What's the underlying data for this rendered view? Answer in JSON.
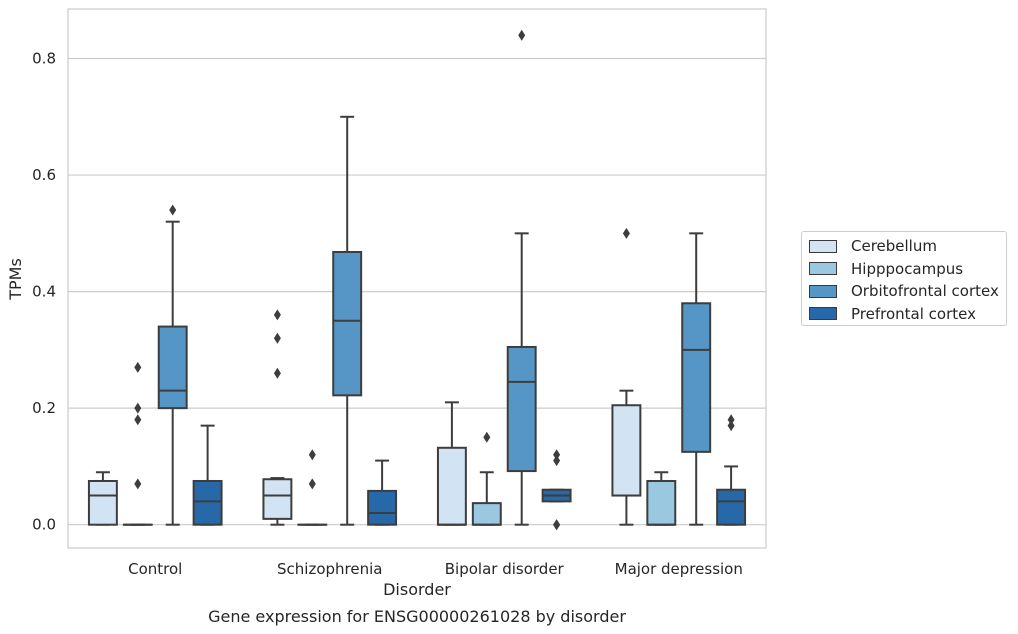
{
  "chart_data": {
    "type": "box",
    "caption": "Gene expression for ENSG00000261028 by disorder",
    "xlabel": "Disorder",
    "ylabel": "TPMs",
    "ylim": [
      -0.04,
      0.885
    ],
    "yticks": [
      "0.0",
      "0.2",
      "0.4",
      "0.6",
      "0.8"
    ],
    "grid": "horizontal",
    "legend_position": "right",
    "categories": [
      "Control",
      "Schizophrenia",
      "Bipolar disorder",
      "Major depression"
    ],
    "series": [
      {
        "name": "Cerebellum",
        "color": "#d2e3f3",
        "boxes": [
          {
            "whislo": 0.0,
            "q1": 0.0,
            "med": 0.05,
            "q3": 0.075,
            "whishi": 0.09,
            "fliers": []
          },
          {
            "whislo": 0.0,
            "q1": 0.01,
            "med": 0.05,
            "q3": 0.078,
            "whishi": 0.08,
            "fliers": [
              0.36,
              0.32,
              0.26
            ]
          },
          {
            "whislo": 0.0,
            "q1": 0.0,
            "med": 0.0,
            "q3": 0.132,
            "whishi": 0.21,
            "fliers": []
          },
          {
            "whislo": 0.0,
            "q1": 0.05,
            "med": 0.05,
            "q3": 0.205,
            "whishi": 0.23,
            "fliers": [
              0.5
            ]
          }
        ]
      },
      {
        "name": "Hipppocampus",
        "color": "#9ac8e0",
        "boxes": [
          {
            "whislo": 0.0,
            "q1": 0.0,
            "med": 0.0,
            "q3": 0.0,
            "whishi": 0.0,
            "fliers": [
              0.27,
              0.2,
              0.18,
              0.07
            ]
          },
          {
            "whislo": 0.0,
            "q1": 0.0,
            "med": 0.0,
            "q3": 0.0,
            "whishi": 0.0,
            "fliers": [
              0.12,
              0.07
            ]
          },
          {
            "whislo": 0.0,
            "q1": 0.0,
            "med": 0.0,
            "q3": 0.037,
            "whishi": 0.09,
            "fliers": [
              0.15
            ]
          },
          {
            "whislo": 0.0,
            "q1": 0.0,
            "med": 0.0,
            "q3": 0.075,
            "whishi": 0.09,
            "fliers": []
          }
        ]
      },
      {
        "name": "Orbitofrontal cortex",
        "color": "#5596c6",
        "boxes": [
          {
            "whislo": 0.0,
            "q1": 0.2,
            "med": 0.23,
            "q3": 0.34,
            "whishi": 0.52,
            "fliers": [
              0.54
            ]
          },
          {
            "whislo": 0.0,
            "q1": 0.222,
            "med": 0.35,
            "q3": 0.468,
            "whishi": 0.7,
            "fliers": []
          },
          {
            "whislo": 0.0,
            "q1": 0.092,
            "med": 0.245,
            "q3": 0.305,
            "whishi": 0.5,
            "fliers": [
              0.84
            ]
          },
          {
            "whislo": 0.0,
            "q1": 0.125,
            "med": 0.3,
            "q3": 0.38,
            "whishi": 0.5,
            "fliers": []
          }
        ]
      },
      {
        "name": "Prefrontal cortex",
        "color": "#2668a8",
        "boxes": [
          {
            "whislo": 0.0,
            "q1": 0.0,
            "med": 0.04,
            "q3": 0.075,
            "whishi": 0.17,
            "fliers": []
          },
          {
            "whislo": 0.0,
            "q1": 0.0,
            "med": 0.02,
            "q3": 0.058,
            "whishi": 0.11,
            "fliers": []
          },
          {
            "whislo": 0.04,
            "q1": 0.04,
            "med": 0.05,
            "q3": 0.06,
            "whishi": 0.06,
            "fliers": [
              0.12,
              0.11,
              0.0,
              0.0
            ]
          },
          {
            "whislo": 0.0,
            "q1": 0.0,
            "med": 0.04,
            "q3": 0.06,
            "whishi": 0.1,
            "fliers": [
              0.18,
              0.17
            ]
          }
        ]
      }
    ]
  }
}
